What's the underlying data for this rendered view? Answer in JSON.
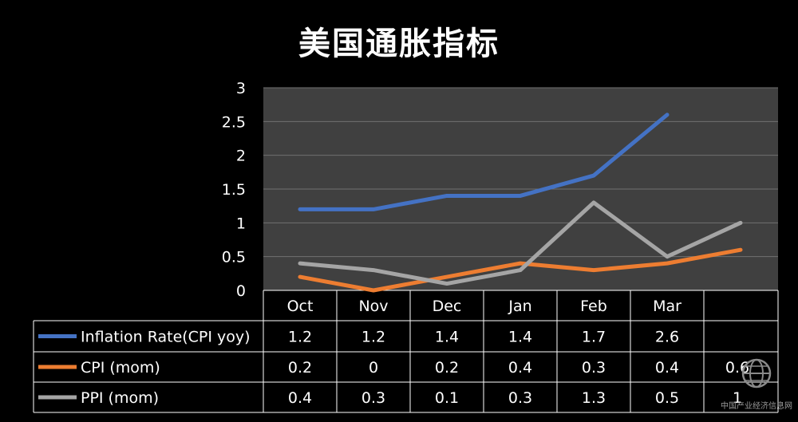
{
  "title": "美国通胀指标",
  "watermark_text": "中国产业经济信息网",
  "chart_data": {
    "type": "line",
    "categories": [
      "Oct",
      "Nov",
      "Dec",
      "Jan",
      "Feb",
      "Mar",
      ""
    ],
    "ylim": [
      0,
      3
    ],
    "yticks": [
      0,
      0.5,
      1,
      1.5,
      2,
      2.5,
      3
    ],
    "ytick_labels": [
      "0",
      "0.5",
      "1",
      "1.5",
      "2",
      "2.5",
      "3"
    ],
    "grid": true,
    "plot_background": "#404040",
    "legend_placement": "data-table-left",
    "series": [
      {
        "name": "Inflation Rate(CPI yoy)",
        "color": "#4472C4",
        "values": [
          1.2,
          1.2,
          1.4,
          1.4,
          1.7,
          2.6,
          null
        ],
        "table_values": [
          "1.2",
          "1.2",
          "1.4",
          "1.4",
          "1.7",
          "2.6",
          ""
        ]
      },
      {
        "name": "CPI (mom)",
        "color": "#ED7D31",
        "values": [
          0.2,
          0,
          0.2,
          0.4,
          0.3,
          0.4,
          0.6
        ],
        "table_values": [
          "0.2",
          "0",
          "0.2",
          "0.4",
          "0.3",
          "0.4",
          "0.6"
        ]
      },
      {
        "name": "PPI (mom)",
        "color": "#A5A5A5",
        "values": [
          0.4,
          0.3,
          0.1,
          0.3,
          1.3,
          0.5,
          1
        ],
        "table_values": [
          "0.4",
          "0.3",
          "0.1",
          "0.3",
          "1.3",
          "0.5",
          "1"
        ]
      }
    ]
  }
}
